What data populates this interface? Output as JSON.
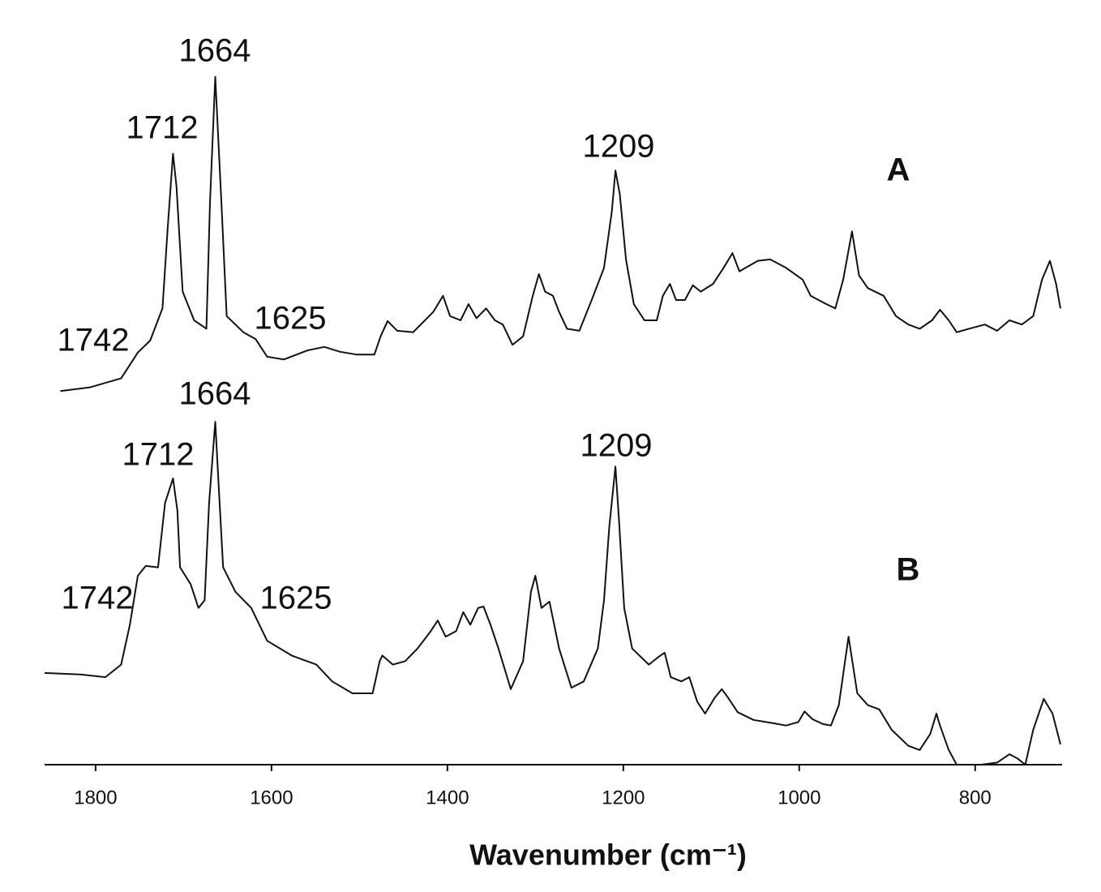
{
  "chart_data": {
    "type": "line",
    "x_label": "Wavenumber (cm⁻¹)",
    "xlim": [
      1858,
      703
    ],
    "ylim": [
      0,
      100
    ],
    "xticks": [
      1800,
      1600,
      1400,
      1200,
      1000,
      800
    ],
    "series": [
      {
        "name": "A",
        "color": "#111111",
        "peak_labels": [
          "1742",
          "1712",
          "1664",
          "1625",
          "1209"
        ],
        "x": [
          1840,
          1807,
          1771,
          1752,
          1738,
          1724,
          1718,
          1712,
          1708,
          1701,
          1688,
          1674,
          1670,
          1664,
          1657,
          1651,
          1632,
          1618,
          1605,
          1586,
          1559,
          1540,
          1522,
          1503,
          1483,
          1476,
          1468,
          1457,
          1439,
          1416,
          1405,
          1397,
          1385,
          1376,
          1367,
          1356,
          1346,
          1337,
          1326,
          1314,
          1303,
          1296,
          1289,
          1280,
          1273,
          1264,
          1250,
          1236,
          1222,
          1213,
          1209,
          1204,
          1197,
          1188,
          1176,
          1162,
          1155,
          1147,
          1140,
          1130,
          1121,
          1112,
          1098,
          1086,
          1076,
          1068,
          1061,
          1047,
          1033,
          1015,
          996,
          987,
          978,
          969,
          959,
          950,
          940,
          932,
          922,
          904,
          890,
          876,
          863,
          849,
          840,
          830,
          821,
          807,
          789,
          775,
          761,
          747,
          734,
          724,
          715,
          708,
          703
        ],
        "values": [
          53.4,
          53.9,
          55.2,
          58.9,
          60.6,
          65.2,
          76.8,
          87.3,
          82.6,
          67.6,
          63.5,
          62.3,
          80.3,
          98.3,
          80.3,
          64.1,
          61.8,
          60.8,
          58.3,
          57.9,
          59.2,
          59.7,
          59.0,
          58.6,
          58.6,
          61.2,
          63.4,
          62.0,
          61.8,
          64.7,
          67.0,
          64.1,
          63.5,
          65.8,
          63.8,
          65.2,
          63.5,
          62.9,
          60.0,
          61.2,
          67.0,
          70.1,
          67.6,
          67.0,
          64.7,
          62.3,
          62.0,
          66.4,
          71.0,
          79.1,
          84.9,
          81.5,
          72.2,
          65.8,
          63.5,
          63.5,
          67.0,
          68.7,
          66.4,
          66.4,
          68.5,
          67.6,
          68.7,
          71.0,
          73.1,
          70.5,
          71.0,
          72.0,
          72.2,
          71.0,
          69.3,
          67.0,
          66.4,
          65.8,
          65.2,
          69.3,
          76.2,
          69.9,
          68.1,
          67.0,
          64.1,
          62.9,
          62.3,
          63.5,
          65.0,
          63.5,
          61.8,
          62.3,
          62.9,
          62.0,
          63.5,
          62.9,
          64.1,
          69.3,
          72.0,
          68.7,
          65.2
        ]
      },
      {
        "name": "B",
        "color": "#111111",
        "peak_labels": [
          "1742",
          "1712",
          "1664",
          "1625",
          "1209"
        ],
        "x": [
          1858,
          1817,
          1789,
          1771,
          1761,
          1752,
          1743,
          1729,
          1721,
          1712,
          1707,
          1704,
          1692,
          1683,
          1676,
          1671,
          1664,
          1660,
          1655,
          1641,
          1623,
          1605,
          1577,
          1549,
          1531,
          1508,
          1485,
          1477,
          1474,
          1462,
          1448,
          1434,
          1420,
          1411,
          1402,
          1390,
          1382,
          1374,
          1365,
          1359,
          1351,
          1342,
          1328,
          1314,
          1305,
          1300,
          1293,
          1284,
          1273,
          1259,
          1245,
          1229,
          1222,
          1216,
          1209,
          1205,
          1199,
          1190,
          1171,
          1160,
          1153,
          1146,
          1134,
          1125,
          1116,
          1107,
          1096,
          1088,
          1081,
          1070,
          1052,
          1028,
          1015,
          1001,
          994,
          985,
          973,
          964,
          955,
          944,
          934,
          922,
          909,
          895,
          876,
          863,
          851,
          844,
          840,
          830,
          821,
          793,
          775,
          761,
          752,
          743,
          734,
          722,
          712,
          703
        ],
        "values": [
          13.1,
          12.9,
          12.5,
          14.3,
          20.0,
          27.0,
          28.4,
          28.2,
          37.4,
          40.9,
          36.3,
          28.2,
          25.8,
          22.4,
          23.5,
          37.4,
          49.0,
          39.7,
          28.2,
          24.7,
          22.4,
          17.7,
          15.6,
          14.3,
          11.9,
          10.2,
          10.2,
          14.8,
          15.6,
          14.3,
          14.8,
          16.6,
          18.9,
          20.6,
          18.3,
          19.1,
          21.8,
          20.0,
          22.4,
          22.6,
          20.0,
          16.6,
          10.8,
          14.8,
          24.7,
          27.0,
          22.4,
          23.3,
          16.6,
          11.0,
          11.9,
          16.6,
          23.5,
          34.0,
          42.6,
          35.1,
          22.4,
          16.6,
          14.3,
          15.4,
          16.0,
          12.5,
          11.9,
          12.5,
          9.0,
          7.3,
          9.6,
          10.8,
          9.6,
          7.5,
          6.4,
          5.9,
          5.6,
          6.1,
          7.6,
          6.5,
          5.8,
          5.6,
          8.5,
          18.3,
          10.2,
          8.5,
          7.9,
          5.0,
          2.7,
          2.1,
          4.4,
          7.3,
          5.6,
          2.1,
          0,
          0,
          0.3,
          1.5,
          0.9,
          0,
          5.0,
          9.4,
          7.3,
          2.9
        ]
      }
    ]
  }
}
